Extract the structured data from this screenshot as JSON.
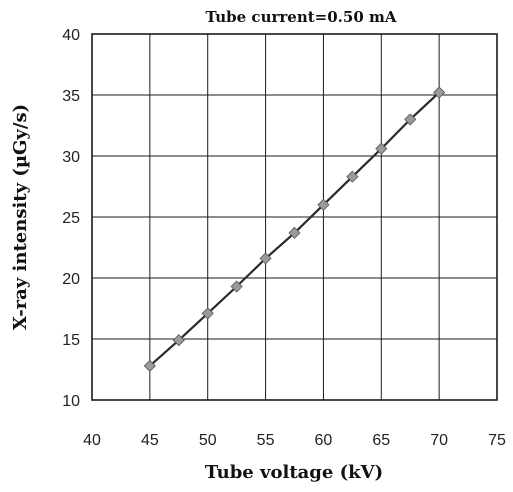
{
  "chart_data": {
    "type": "line",
    "title": "Tube current=0.50 mA",
    "xlabel": "Tube voltage (kV)",
    "ylabel": "X-ray intensity (µGy/s)",
    "xlim": [
      40,
      75
    ],
    "ylim": [
      10,
      40
    ],
    "xticks": [
      40,
      45,
      50,
      55,
      60,
      65,
      70,
      75
    ],
    "yticks": [
      10,
      15,
      20,
      25,
      30,
      35,
      40
    ],
    "grid": true,
    "series": [
      {
        "x": [
          45,
          47.5,
          50,
          52.5,
          55,
          57.5,
          60,
          62.5,
          65,
          67.5,
          70
        ],
        "y": [
          12.8,
          14.9,
          17.1,
          19.3,
          21.6,
          23.7,
          26.0,
          28.3,
          30.6,
          33.0,
          35.2
        ],
        "color": "#9a9a9a",
        "marker": "diamond"
      }
    ]
  }
}
